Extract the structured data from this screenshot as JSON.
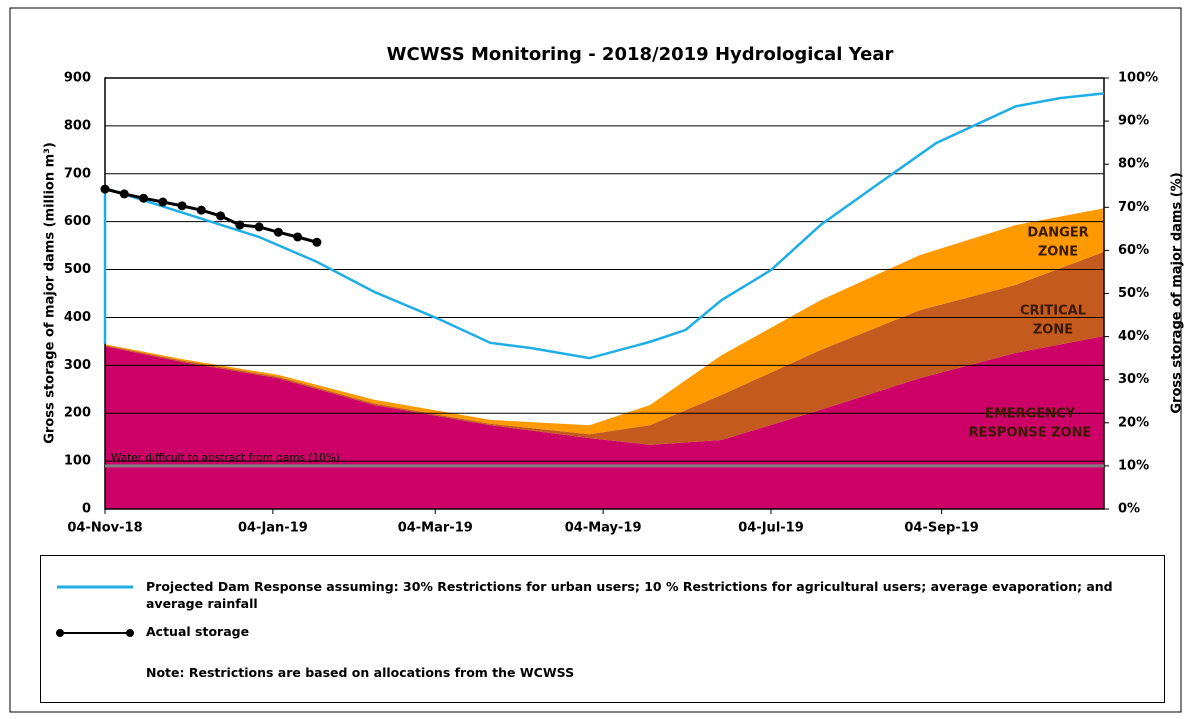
{
  "chart_data": {
    "type": "line",
    "title": "WCWSS Monitoring -  2018/2019  Hydrological Year",
    "y_label": "Gross storage of major dams (million m³)",
    "y2_label": "Gross storage of major dams (%)",
    "xlim": [
      "2018-11-04",
      "2019-11-02"
    ],
    "xticks": [
      {
        "value": "2018-11-04",
        "label": "04-Nov-18"
      },
      {
        "value": "2019-01-04",
        "label": "04-Jan-19"
      },
      {
        "value": "2019-03-04",
        "label": "04-Mar-19"
      },
      {
        "value": "2019-05-04",
        "label": "04-May-19"
      },
      {
        "value": "2019-07-04",
        "label": "04-Jul-19"
      },
      {
        "value": "2019-09-04",
        "label": "04-Sep-19"
      }
    ],
    "ylim": [
      0,
      900
    ],
    "yticks": [
      0,
      100,
      200,
      300,
      400,
      500,
      600,
      700,
      800,
      900
    ],
    "y2lim": [
      0,
      100
    ],
    "y2ticks": [
      {
        "value": 0,
        "label": "0%"
      },
      {
        "value": 10,
        "label": "10%"
      },
      {
        "value": 20,
        "label": "20%"
      },
      {
        "value": 30,
        "label": "30%"
      },
      {
        "value": 40,
        "label": "40%"
      },
      {
        "value": 50,
        "label": "50%"
      },
      {
        "value": 60,
        "label": "60%"
      },
      {
        "value": 70,
        "label": "70%"
      },
      {
        "value": 80,
        "label": "80%"
      },
      {
        "value": 90,
        "label": "90%"
      },
      {
        "value": 100,
        "label": "100%"
      }
    ],
    "grid": true,
    "zones": {
      "x": [
        "2018-11-04",
        "2018-12-02",
        "2019-01-06",
        "2019-02-10",
        "2019-03-24",
        "2019-04-29",
        "2019-05-21",
        "2019-06-16",
        "2019-07-22",
        "2019-08-27",
        "2019-10-01",
        "2019-11-02"
      ],
      "areas": [
        {
          "label": [
            "EMERGENCY",
            "RESPONSE ZONE"
          ],
          "color": "#cc0066",
          "values": [
            340,
            307,
            273,
            217,
            175,
            148,
            134,
            144,
            207,
            273,
            326,
            361
          ]
        },
        {
          "label": [
            "CRITICAL",
            "ZONE"
          ],
          "color": "#c55a1e",
          "values": [
            2,
            3,
            3,
            3,
            3,
            8,
            41,
            94,
            125,
            142,
            142,
            176
          ]
        },
        {
          "label": [
            "DANGER",
            "ZONE"
          ],
          "color": "#ff9900",
          "values": [
            2,
            3,
            4,
            8,
            8,
            19,
            42,
            83,
            104,
            115,
            125,
            91
          ]
        }
      ]
    },
    "threshold": {
      "value": 10,
      "axis": "y2",
      "color": "#808080",
      "label": "Water difficult to abstract from dams (10%)"
    },
    "series": [
      {
        "name": "Projected Dam Response assuming: 30% Restrictions for urban users; 10 % Restrictions for agricultural users; average evaporation; and average rainfall",
        "color": "#1eaee6",
        "marker": false,
        "x": [
          "2018-11-04",
          "2018-11-04",
          "2018-12-30",
          "2019-01-20",
          "2019-02-10",
          "2019-03-06",
          "2019-03-24",
          "2019-04-08",
          "2019-04-29",
          "2019-05-21",
          "2019-06-03",
          "2019-06-16",
          "2019-07-04",
          "2019-07-22",
          "2019-08-13",
          "2019-09-02",
          "2019-10-01",
          "2019-10-17",
          "2019-11-02"
        ],
        "values": [
          345,
          670,
          568,
          516,
          453,
          395,
          347,
          336,
          315,
          349,
          374,
          436,
          499,
          593,
          683,
          764,
          841,
          858,
          868
        ]
      },
      {
        "name": "Actual storage",
        "color": "#000000",
        "marker": true,
        "x": [
          "2018-11-04",
          "2018-11-11",
          "2018-11-18",
          "2018-11-25",
          "2018-12-02",
          "2018-12-09",
          "2018-12-16",
          "2018-12-23",
          "2018-12-30",
          "2019-01-06",
          "2019-01-13",
          "2019-01-20"
        ],
        "values": [
          668,
          658,
          649,
          641,
          633,
          624,
          612,
          593,
          589,
          578,
          568,
          557
        ]
      }
    ],
    "note": "Note: Restrictions are based on allocations from the WCWSS"
  }
}
